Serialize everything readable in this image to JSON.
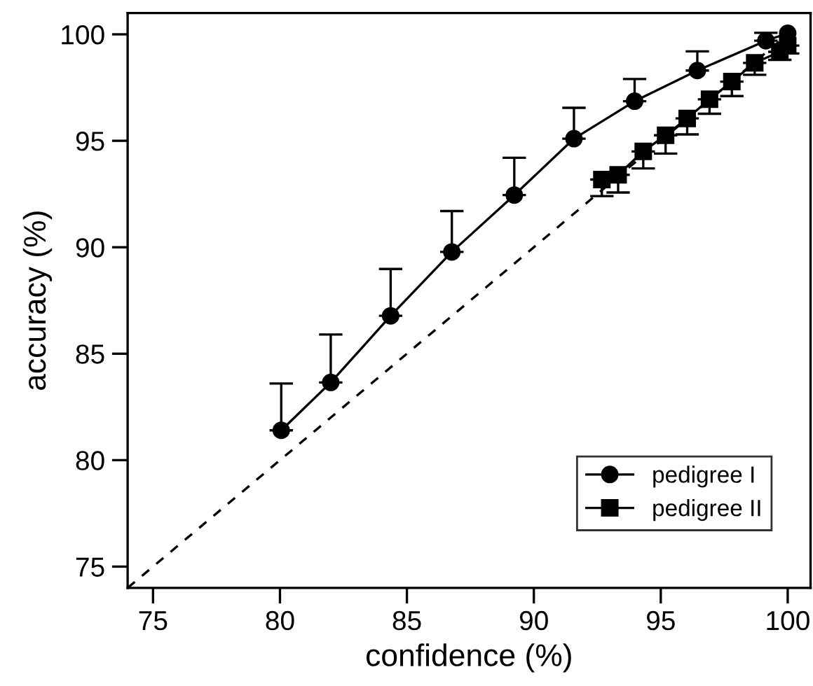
{
  "chart_data": {
    "type": "line",
    "xlabel": "confidence (%)",
    "ylabel": "accuracy (%)",
    "xlim": [
      74,
      100.9
    ],
    "ylim": [
      74,
      101
    ],
    "xticks": [
      75,
      80,
      85,
      90,
      95,
      100
    ],
    "yticks": [
      75,
      80,
      85,
      90,
      95,
      100
    ],
    "grid": false,
    "legend": "bottom right",
    "series": [
      {
        "name": "pedigree I",
        "color": "#000000",
        "marker": "circle",
        "line_style": "solid",
        "x": [
          80.05,
          82,
          84.36,
          86.77,
          89.23,
          91.58,
          93.97,
          96.44,
          99.14,
          100
        ],
        "values": [
          81.4,
          83.65,
          86.78,
          89.78,
          92.45,
          95.1,
          96.86,
          98.3,
          99.7,
          100.05
        ],
        "errors": [
          [
            81.4,
            83.6
          ],
          [
            83.65,
            85.9
          ],
          [
            86.78,
            88.98
          ],
          [
            89.78,
            91.7
          ],
          [
            92.45,
            94.2
          ],
          [
            95.1,
            96.55
          ],
          [
            96.86,
            97.9
          ],
          [
            98.3,
            99.2
          ],
          [
            99.7,
            100.07
          ],
          null
        ]
      },
      {
        "name": "pedigree II",
        "color": "#000000",
        "marker": "square",
        "line_style": "solid",
        "x": [
          92.68,
          93.32,
          94.31,
          95.19,
          96.04,
          96.92,
          97.8,
          98.7,
          99.69,
          100
        ],
        "values": [
          93.18,
          93.4,
          94.5,
          95.26,
          96.05,
          96.95,
          97.78,
          98.66,
          99.18,
          99.47
        ],
        "errors": [
          [
            92.4,
            93.18
          ],
          [
            92.57,
            93.4
          ],
          [
            93.7,
            94.5
          ],
          [
            94.4,
            95.26
          ],
          [
            95.3,
            96.05
          ],
          [
            96.27,
            96.95
          ],
          [
            97.1,
            97.78
          ],
          [
            98.1,
            98.66
          ],
          [
            98.8,
            99.18
          ],
          [
            99.1,
            99.47
          ]
        ]
      },
      {
        "color": "#000000",
        "marker": "none",
        "line_style": "dashed",
        "x": [
          74,
          100
        ],
        "values": [
          74,
          100
        ]
      }
    ]
  }
}
